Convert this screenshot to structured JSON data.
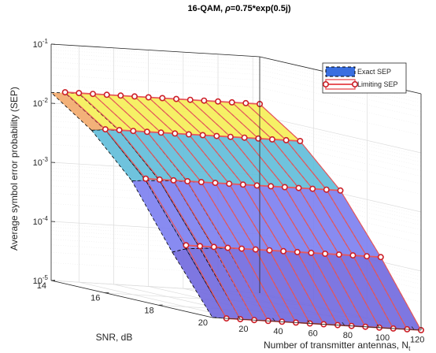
{
  "chart_data": {
    "type": "surface",
    "title_parts": [
      "16-QAM, ",
      "ρ",
      "=0.75*exp(0.5j)"
    ],
    "xlabel": "Number of transmitter antennas, N",
    "xlabel_subscript": "t",
    "ylabel": "SNR, dB",
    "zlabel": "Average symbol error probability (SEP)",
    "x_ticks": [
      "20",
      "40",
      "60",
      "80",
      "100",
      "120"
    ],
    "y_ticks": [
      "14",
      "16",
      "18",
      "20"
    ],
    "z_ticks": [
      {
        "base": "10",
        "exp": "-1"
      },
      {
        "base": "10",
        "exp": "-2"
      },
      {
        "base": "10",
        "exp": "-3"
      },
      {
        "base": "10",
        "exp": "-4"
      },
      {
        "base": "10",
        "exp": "-5"
      }
    ],
    "xlim": [
      4,
      124
    ],
    "ylim": [
      14,
      20
    ],
    "zlim_log10": [
      -5,
      -1
    ],
    "z_scale": "log",
    "grid": true,
    "legend_position": "top-right",
    "legend": [
      {
        "label": "Exact SEP",
        "style": "surface"
      },
      {
        "label": "Limiting SEP",
        "style": "line-marker"
      }
    ],
    "x": [
      4,
      12,
      20,
      28,
      36,
      44,
      52,
      60,
      68,
      76,
      84,
      92,
      100,
      108,
      116,
      124
    ],
    "snr_db": [
      14,
      15.5,
      17,
      18.5,
      20
    ],
    "exact_sep_log10": [
      [
        -1.82,
        -1.81,
        -1.81,
        -1.8,
        -1.8,
        -1.8,
        -1.8,
        -1.8,
        -1.8,
        -1.8,
        -1.8,
        -1.8,
        -1.8,
        -1.8,
        -1.8,
        -1.8
      ],
      [
        -2.3,
        -2.28,
        -2.28,
        -2.27,
        -2.27,
        -2.27,
        -2.27,
        -2.27,
        -2.27,
        -2.27,
        -2.27,
        -2.27,
        -2.27,
        -2.27,
        -2.27,
        -2.27
      ],
      [
        -3.0,
        -2.98,
        -2.97,
        -2.96,
        -2.96,
        -2.95,
        -2.95,
        -2.95,
        -2.95,
        -2.95,
        -2.95,
        -2.95,
        -2.95,
        -2.95,
        -2.95,
        -2.95
      ],
      [
        -4.05,
        -3.98,
        -3.96,
        -3.94,
        -3.93,
        -3.92,
        -3.92,
        -3.92,
        -3.92,
        -3.92,
        -3.92,
        -3.92,
        -3.92,
        -3.92,
        -3.92,
        -3.92
      ],
      [
        -5.0,
        -5.0,
        -5.0,
        -5.0,
        -5.0,
        -5.0,
        -5.0,
        -5.0,
        -5.0,
        -5.0,
        -5.0,
        -5.0,
        -5.0,
        -5.0,
        -5.0,
        -5.0
      ]
    ],
    "limiting_sep_log10": [
      -1.8,
      -2.27,
      -2.95,
      -3.92,
      -5.0
    ],
    "colors": {
      "surface_face_colors": [
        "#f5ee55",
        "#5fbcd9",
        "#7b7ef0",
        "#7068de"
      ],
      "surface_edge": "#000000",
      "limiting_line": "#e8575b",
      "limiting_marker_edge": "#cc1f27",
      "axis": "#262626",
      "grid": "#dcdcdc"
    }
  }
}
